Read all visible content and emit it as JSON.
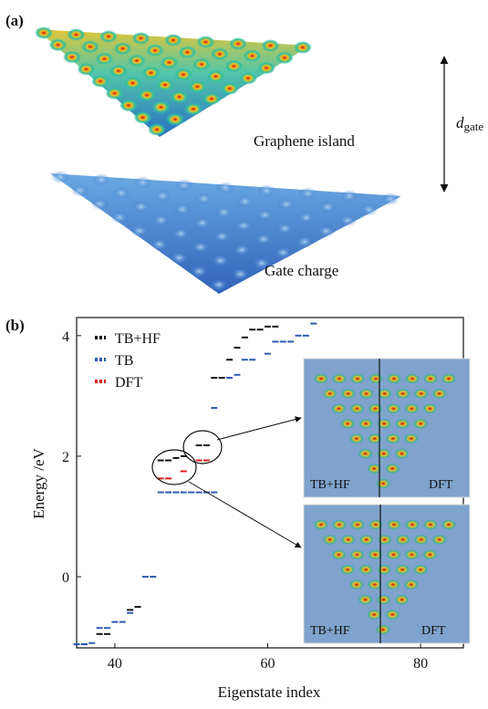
{
  "panel_a": {
    "label": "(a)",
    "island_label": "Graphene island",
    "gate_label": "Gate charge",
    "distance_symbol": "d",
    "distance_subscript": "gate"
  },
  "chart_data": {
    "type": "levels",
    "panel_label": "(b)",
    "x_label": "Eigenstate index",
    "y_label": "Energy /eV",
    "xlim": [
      35,
      85.6
    ],
    "ylim": [
      -1.18,
      4.3
    ],
    "xticks": [
      40,
      60,
      80
    ],
    "yticks": [
      0,
      2,
      4
    ],
    "legend": "upper left",
    "series": [
      {
        "name": "TB+HF",
        "color": "#111111",
        "x": [
          35,
          36,
          38,
          39,
          42,
          43,
          46,
          47,
          48,
          49,
          51,
          52,
          53,
          54,
          55,
          56,
          57,
          58,
          59,
          60,
          61
        ],
        "values": [
          -1.12,
          -1.12,
          -0.95,
          -0.95,
          -0.55,
          -0.5,
          1.93,
          1.93,
          1.97,
          2.0,
          2.18,
          2.18,
          3.3,
          3.3,
          3.6,
          3.8,
          3.97,
          4.1,
          4.1,
          4.15,
          4.15
        ]
      },
      {
        "name": "TB",
        "color": "#2a5bb0",
        "x": [
          35,
          36,
          37,
          38,
          39,
          40,
          41,
          42,
          44,
          45,
          46,
          47,
          48,
          49,
          50,
          51,
          52,
          53,
          53,
          55,
          56,
          57,
          58,
          60,
          61,
          62,
          63,
          64,
          65,
          66
        ],
        "values": [
          -1.12,
          -1.12,
          -1.1,
          -0.85,
          -0.85,
          -0.75,
          -0.75,
          -0.6,
          0.0,
          0.0,
          1.4,
          1.4,
          1.4,
          1.4,
          1.4,
          1.4,
          1.4,
          1.4,
          2.8,
          3.3,
          3.35,
          3.6,
          3.6,
          3.7,
          3.9,
          3.9,
          3.9,
          4.0,
          4.0,
          4.2
        ]
      },
      {
        "name": "DFT",
        "color": "#e02020",
        "x": [
          46,
          47,
          49,
          51,
          52
        ],
        "values": [
          1.63,
          1.63,
          1.75,
          1.93,
          1.93
        ]
      }
    ]
  },
  "insets": [
    {
      "left": "TB+HF",
      "right": "DFT"
    },
    {
      "left": "TB+HF",
      "right": "DFT"
    }
  ]
}
